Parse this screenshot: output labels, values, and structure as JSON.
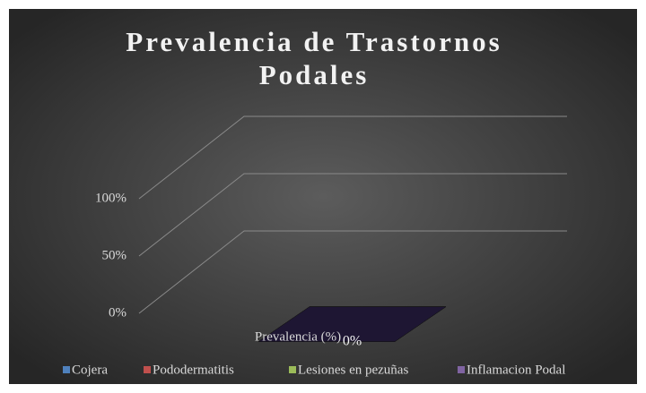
{
  "chart_data": {
    "type": "bar3d",
    "title": "Prevalencia de Trastornos Podales",
    "categories": [
      "Prevalencia (%)"
    ],
    "series": [
      {
        "name": "Cojera",
        "color": "#4f81bd",
        "values": [
          0
        ]
      },
      {
        "name": "Pododermatitis",
        "color": "#c0504d",
        "values": [
          0
        ]
      },
      {
        "name": "Lesiones en pezuñas",
        "color": "#9bbb59",
        "values": [
          0
        ]
      },
      {
        "name": "Inflamacion Podal",
        "color": "#8064a2",
        "values": [
          0
        ],
        "value_labels": [
          "0%"
        ]
      }
    ],
    "ylim": [
      0,
      100
    ],
    "yticks": [
      {
        "value": 0,
        "label": "0%"
      },
      {
        "value": 50,
        "label": "50%"
      },
      {
        "value": 100,
        "label": "100%"
      }
    ],
    "grid": true,
    "legend": "bottom"
  }
}
